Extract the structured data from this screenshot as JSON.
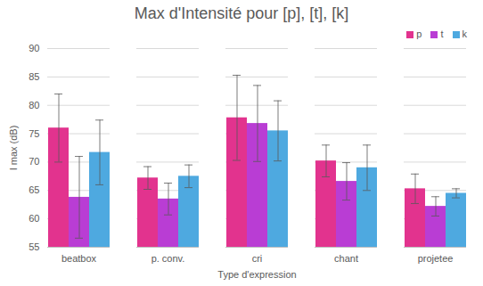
{
  "chart_data": {
    "type": "bar",
    "title": "Max d'Intensité pour [p], [t], [k]",
    "x_label": "Type d'expression",
    "y_label": "I max (dB)",
    "categories": [
      "beatbox",
      "p. conv.",
      "cri",
      "chant",
      "projetee"
    ],
    "series": [
      {
        "name": "p",
        "color": "#e2338e",
        "values": [
          76,
          67.2,
          77.8,
          70.2,
          65.3
        ],
        "errors": [
          6,
          2,
          7.5,
          2.8,
          2.6
        ]
      },
      {
        "name": "t",
        "color": "#b93dd4",
        "values": [
          63.8,
          63.5,
          76.8,
          66.6,
          62.2
        ],
        "errors": [
          7.2,
          2.8,
          6.7,
          3.3,
          1.7
        ]
      },
      {
        "name": "k",
        "color": "#4ea9e0",
        "values": [
          71.7,
          67.5,
          75.5,
          69,
          64.5
        ],
        "errors": [
          5.7,
          2,
          5.3,
          4,
          0.8
        ]
      }
    ],
    "ylim": [
      55,
      90
    ],
    "yticks": [
      55,
      60,
      65,
      70,
      75,
      80,
      85,
      90
    ],
    "grid": true,
    "legend": "top-right"
  }
}
